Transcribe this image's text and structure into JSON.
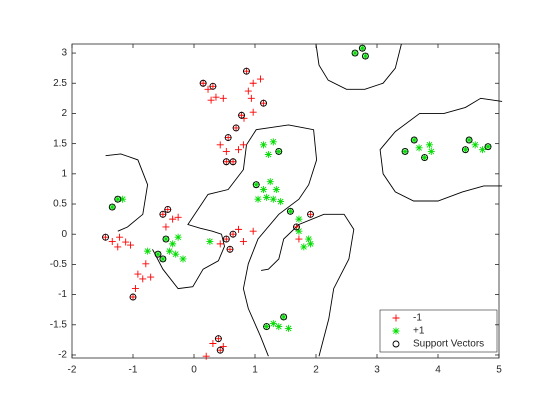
{
  "chart_data": {
    "type": "scatter",
    "xlim": [
      -2,
      5
    ],
    "ylim": [
      -2.05,
      3.15
    ],
    "xticks": [
      -2,
      -1,
      0,
      1,
      2,
      3,
      4,
      5
    ],
    "yticks": [
      -2,
      -1.5,
      -1,
      -0.5,
      0,
      0.5,
      1,
      1.5,
      2,
      2.5,
      3
    ],
    "legend_position": "southeast",
    "series": [
      {
        "name": "-1",
        "color": "#ff0000",
        "marker": "plus",
        "x": [
          0.15,
          0.23,
          0.31,
          0.36,
          0.48,
          0.28,
          0.86,
          0.97,
          1.09,
          0.89,
          0.94,
          1.14,
          0.78,
          0.69,
          0.56,
          0.43,
          0.53,
          0.73,
          0.81,
          0.64,
          0.53,
          0.97,
          0.82,
          -0.51,
          -0.43,
          -0.35,
          -0.46,
          -0.26,
          -1.45,
          -1.34,
          -1.22,
          -1.12,
          -1.04,
          -1.25,
          -0.79,
          -0.92,
          -0.84,
          -0.71,
          -0.96,
          -1.0,
          0.53,
          0.59,
          0.64,
          0.73,
          0.81,
          0.97,
          0.43,
          1.72,
          1.68,
          1.91,
          0.31,
          0.43,
          0.4,
          0.48,
          0.2
        ],
        "y": [
          2.5,
          2.4,
          2.45,
          2.27,
          2.25,
          2.22,
          2.7,
          2.5,
          2.57,
          2.37,
          2.25,
          2.17,
          1.97,
          1.76,
          1.6,
          1.48,
          1.37,
          1.4,
          1.48,
          1.2,
          1.2,
          2.02,
          1.92,
          0.33,
          0.41,
          0.25,
          0.12,
          0.28,
          -0.05,
          -0.12,
          -0.05,
          -0.13,
          -0.18,
          -0.21,
          -0.49,
          -0.66,
          -0.74,
          -0.71,
          -0.9,
          -1.04,
          -0.08,
          -0.25,
          0,
          0.08,
          -0.12,
          0.05,
          -0.16,
          -0.08,
          0.12,
          0.33,
          -1.81,
          -1.92,
          -1.73,
          -1.86,
          -2.02
        ]
      },
      {
        "name": "+1",
        "color": "#00dd00",
        "marker": "star",
        "x": [
          2.64,
          2.76,
          2.81,
          3.61,
          3.69,
          3.78,
          3.89,
          3.86,
          3.46,
          4.51,
          4.45,
          4.61,
          4.73,
          4.82,
          1.14,
          1.22,
          1.3,
          1.39,
          1.02,
          1.14,
          1.25,
          1.35,
          1.19,
          1.3,
          1.42,
          1.05,
          1.58,
          -0.46,
          -0.35,
          -0.26,
          -0.4,
          -0.59,
          -0.51,
          -0.3,
          -0.18,
          -0.76,
          0.26,
          -1.25,
          -1.17,
          -1.34,
          1.72,
          1.88,
          1.8,
          1.91,
          1.72,
          1.47,
          1.55,
          1.39,
          1.3,
          1.19
        ],
        "y": [
          3.0,
          3.08,
          2.95,
          1.56,
          1.43,
          1.27,
          1.37,
          1.48,
          1.37,
          1.56,
          1.4,
          1.48,
          1.4,
          1.45,
          1.48,
          1.32,
          1.53,
          1.37,
          0.82,
          0.74,
          0.87,
          0.74,
          0.61,
          0.58,
          0.54,
          0.58,
          0.38,
          -0.08,
          -0.16,
          -0.05,
          -0.28,
          -0.33,
          -0.41,
          -0.33,
          -0.41,
          -0.28,
          -0.12,
          0.58,
          0.58,
          0.45,
          0.05,
          -0.08,
          -0.21,
          -0.16,
          0.25,
          -1.37,
          -1.56,
          -1.53,
          -1.48,
          -1.53
        ]
      },
      {
        "name": "Support Vectors",
        "color": "#000000",
        "marker": "circle",
        "x": [
          0.15,
          0.31,
          0.86,
          1.14,
          0.78,
          0.69,
          0.56,
          0.53,
          0.64,
          2.64,
          2.76,
          2.81,
          3.46,
          3.61,
          3.78,
          4.45,
          4.51,
          4.82,
          1.39,
          1.02,
          1.58,
          1.91,
          1.68,
          -1.25,
          -1.34,
          -0.51,
          -0.43,
          -0.46,
          -0.59,
          0.59,
          0.64,
          0.53,
          -1.45,
          -1.0,
          -0.51,
          1.19,
          1.47,
          0.43,
          0.4
        ],
        "y": [
          2.5,
          2.45,
          2.7,
          2.17,
          1.97,
          1.76,
          1.6,
          1.2,
          1.2,
          3.0,
          3.08,
          2.95,
          1.37,
          1.56,
          1.27,
          1.4,
          1.56,
          1.45,
          1.37,
          0.82,
          0.38,
          0.33,
          0.12,
          0.58,
          0.45,
          0.33,
          0.41,
          -0.08,
          -0.33,
          -0.25,
          0,
          -0.08,
          -0.05,
          -1.04,
          -0.41,
          -1.53,
          -1.37,
          -1.92,
          -1.73
        ]
      }
    ],
    "contours": {
      "color": "#000000",
      "x": [
        2.0,
        2.05,
        2.2,
        2.5,
        2.8,
        3.1,
        3.3,
        3.4,
        null,
        5.05,
        4.7,
        4.45,
        4.1,
        3.7,
        3.3,
        3.05,
        3.1,
        3.3,
        3.6,
        4.0,
        4.4,
        4.75,
        5.05,
        null,
        -1.45,
        -1.2,
        -0.92,
        -0.76,
        -0.84,
        -1.09,
        -1.25,
        null,
        -0.68,
        -0.51,
        -0.26,
        -0.02,
        0.15,
        0.4,
        0.5,
        0.45,
        0.3,
        0.1,
        -0.1,
        0.23,
        0.56,
        0.81,
        0.86,
        1.02,
        1.55,
        1.96,
        2.01,
        1.88,
        1.72,
        1.39,
        1.05,
        0.89,
        0.81,
        0.89,
        1.09,
        1.22,
        null,
        2.05,
        2.21,
        2.29,
        2.54,
        2.62,
        2.46,
        2.13,
        1.72,
        1.47,
        1.39,
        1.22,
        1.1
      ],
      "y": [
        3.15,
        2.8,
        2.55,
        2.4,
        2.4,
        2.5,
        2.75,
        3.15,
        null,
        2.2,
        2.25,
        2.1,
        2.0,
        2.0,
        1.7,
        1.4,
        1.0,
        0.7,
        0.55,
        0.55,
        0.7,
        0.8,
        0.8,
        null,
        1.3,
        1.33,
        1.23,
        0.82,
        0.33,
        0.12,
        0.05,
        null,
        -0.25,
        -0.58,
        -0.9,
        -0.87,
        -0.58,
        -0.44,
        -0.2,
        0.0,
        0.05,
        0.1,
        0.16,
        0.66,
        0.74,
        1.07,
        1.48,
        1.73,
        1.81,
        1.73,
        1.23,
        0.82,
        0.58,
        0.33,
        -0.08,
        -0.49,
        -0.9,
        -1.23,
        -1.69,
        -2.02,
        null,
        -2.02,
        -1.4,
        -0.9,
        -0.41,
        0.08,
        0.33,
        0.33,
        0.16,
        -0.08,
        -0.41,
        -0.58,
        -0.6
      ]
    }
  }
}
